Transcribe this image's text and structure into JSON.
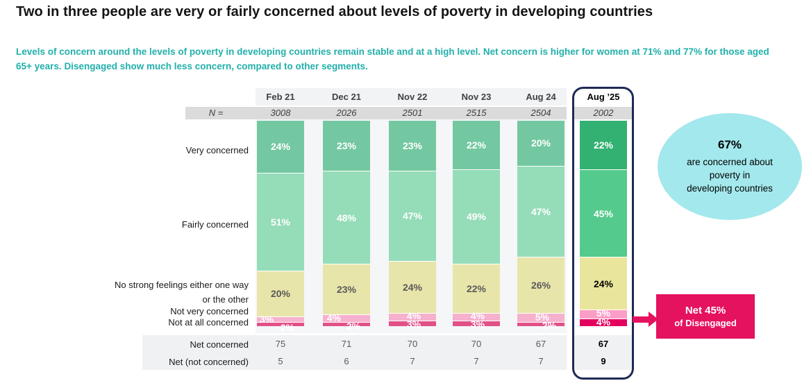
{
  "title": "Two in three people are very or fairly concerned about levels of poverty in developing countries",
  "subtitle": "Levels of concern around the levels of poverty in developing countries remain stable and at a high level. Net concern is higher for women at 71% and 77% for those aged 65+ years. Disengaged show much less concern, compared to other segments.",
  "chart_data": {
    "type": "bar",
    "stacked": true,
    "value_format": "percent",
    "categories": [
      "Feb 21",
      "Dec 21",
      "Nov 22",
      "Nov 23",
      "Aug 24",
      "Aug ’25"
    ],
    "highlight_column": "Aug ’25",
    "n_label": "N  =",
    "n_values": [
      "3008",
      "2026",
      "2501",
      "2515",
      "2504",
      "2002"
    ],
    "series": [
      {
        "name": "Very concerned",
        "values": [
          24,
          23,
          23,
          22,
          20,
          22
        ],
        "color": "#74c8a1",
        "highlight_color": "#33b173",
        "label_color": "#ffffff",
        "highlight_label_color": "#ffffff"
      },
      {
        "name": "Fairly concerned",
        "values": [
          51,
          48,
          47,
          49,
          47,
          45
        ],
        "color": "#95dcb9",
        "highlight_color": "#55ca8d",
        "label_color": "#ffffff",
        "highlight_label_color": "#ffffff"
      },
      {
        "name": "No strong feelings either one way or the other",
        "values": [
          20,
          23,
          24,
          22,
          26,
          24
        ],
        "color": "#e8e5ab",
        "highlight_color": "#eae59d",
        "label_color": "#595959",
        "highlight_label_color": "#000000"
      },
      {
        "name": "Not very concerned",
        "values": [
          3,
          4,
          4,
          4,
          5,
          5
        ],
        "color": "#f6b1ce",
        "highlight_color": "#fc9dc6",
        "label_color": "#ffffff",
        "highlight_label_color": "#ffffff"
      },
      {
        "name": "Not at all concerned",
        "values": [
          2,
          2,
          3,
          3,
          2,
          4
        ],
        "color": "#e25088",
        "highlight_color": "#e4005f",
        "label_color": "#ffffff",
        "highlight_label_color": "#ffffff"
      }
    ],
    "net_rows": [
      {
        "label": "Net concerned",
        "values": [
          75,
          71,
          70,
          70,
          67,
          67
        ]
      },
      {
        "label": "Net (not concerned)",
        "values": [
          5,
          6,
          7,
          7,
          7,
          9
        ]
      }
    ]
  },
  "callout_ellipse": {
    "headline": "67%",
    "text": "are concerned about poverty in developing countries",
    "bg_color": "#a3e8ec"
  },
  "callout_box": {
    "line1": "Net 45%",
    "line2": "of Disengaged",
    "bg_color": "#e5125f"
  },
  "accent_colors": {
    "subtitle_teal": "#21b0ab",
    "highlight_outline_navy": "#1e2a56",
    "callout_magenta": "#e5125f"
  }
}
